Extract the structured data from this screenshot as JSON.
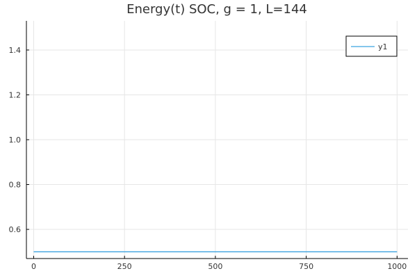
{
  "chart_data": {
    "type": "line",
    "title": "Energy(t) SOC, g = 1, L=144",
    "xlabel": "",
    "ylabel": "",
    "xlim": [
      -20,
      1030
    ],
    "ylim": [
      0.47,
      1.53
    ],
    "xticks": [
      0,
      250,
      500,
      750,
      1000
    ],
    "yticks": [
      0.6,
      0.8,
      1.0,
      1.2,
      1.4
    ],
    "xtick_labels": [
      "0",
      "250",
      "500",
      "750",
      "1000"
    ],
    "ytick_labels": [
      "0.6",
      "0.8",
      "1.0",
      "1.2",
      "1.4"
    ],
    "grid": true,
    "legend": {
      "position": "top-right"
    },
    "series": [
      {
        "name": "y1",
        "color": "#3ba3e0",
        "x": [
          0,
          1000
        ],
        "y": [
          0.5,
          0.5
        ]
      }
    ]
  }
}
